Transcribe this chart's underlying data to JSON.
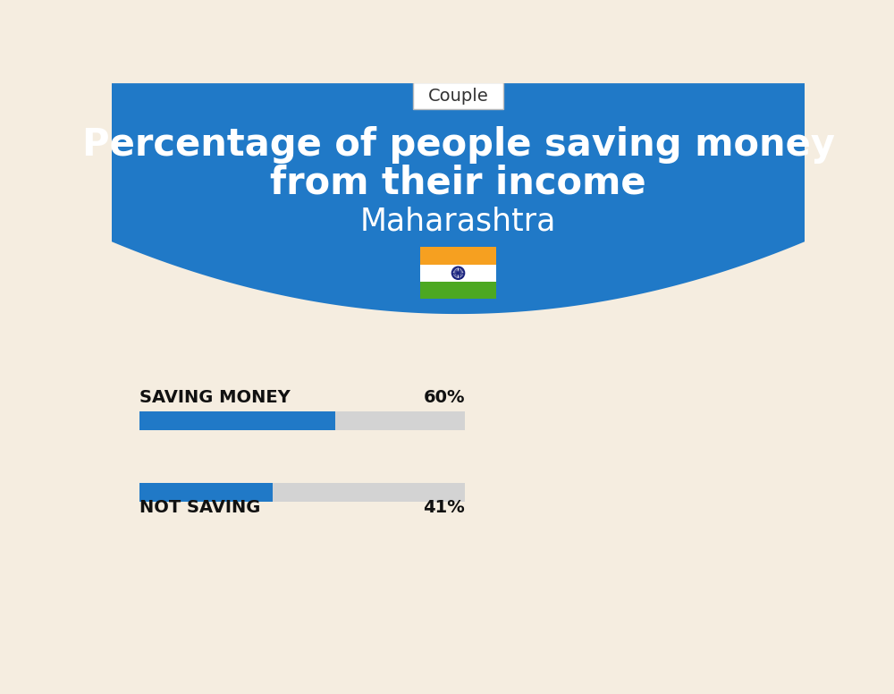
{
  "title_line1": "Percentage of people saving money",
  "title_line2": "from their income",
  "subtitle": "Maharashtra",
  "tab_label": "Couple",
  "saving_label": "SAVING MONEY",
  "saving_value": 60,
  "saving_text": "60%",
  "not_saving_label": "NOT SAVING",
  "not_saving_value": 41,
  "not_saving_text": "41%",
  "blue_bg": "#2079C7",
  "cream_bg": "#F5EDE0",
  "bar_blue": "#2079C7",
  "bar_gray": "#D3D3D3",
  "bar_max": 100,
  "title_color": "#FFFFFF",
  "subtitle_color": "#FFFFFF",
  "label_color": "#111111",
  "tab_bg": "#FFFFFF",
  "tab_border": "#BBBBBB",
  "flag_orange": "#F6A020",
  "flag_white": "#FFFFFF",
  "flag_green": "#4CA822",
  "flag_chakra": "#1A237E"
}
